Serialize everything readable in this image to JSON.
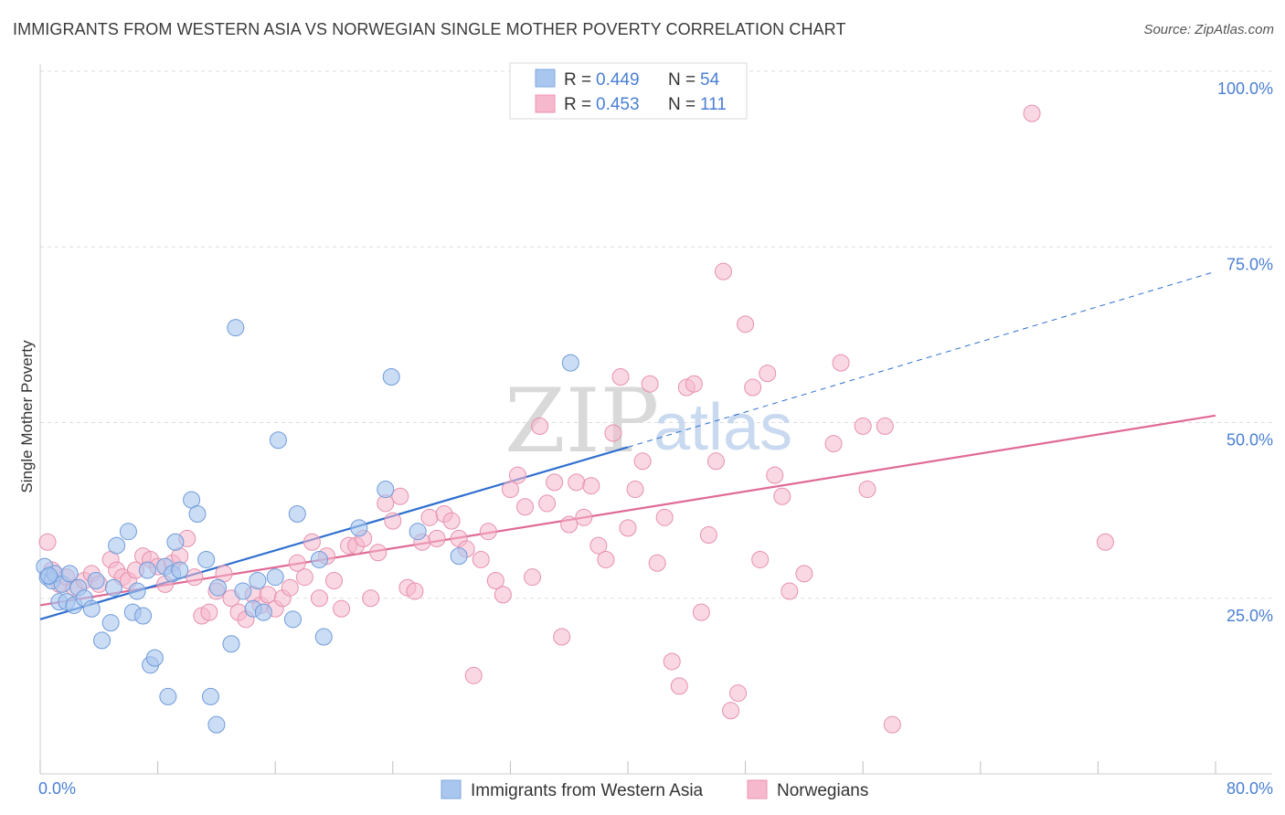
{
  "header": {
    "title": "IMMIGRANTS FROM WESTERN ASIA VS NORWEGIAN SINGLE MOTHER POVERTY CORRELATION CHART",
    "source": "Source: ZipAtlas.com"
  },
  "watermark": {
    "part1": "ZIP",
    "part2": "atlas"
  },
  "colors": {
    "blue": "#4a7fd4",
    "blue_fill": "#a9c6ee",
    "blue_line": "#2f6fcf",
    "pink": "#e0608e",
    "pink_fill": "#f6b8cc",
    "pink_line": "#e06a96",
    "grid": "#dddddd"
  },
  "legend_top": {
    "rows": [
      {
        "r_label": "R = ",
        "r_value": "0.449",
        "n_label": "N = ",
        "n_value": "54"
      },
      {
        "r_label": "R = ",
        "r_value": "0.453",
        "n_label": "N = ",
        "n_value": "111"
      }
    ]
  },
  "chart_data": {
    "type": "scatter",
    "title": "IMMIGRANTS FROM WESTERN ASIA VS NORWEGIAN SINGLE MOTHER POVERTY CORRELATION CHART",
    "xlabel": "",
    "ylabel": "Single Mother Poverty",
    "xlim": [
      0,
      80
    ],
    "ylim": [
      0,
      100
    ],
    "x_tick_labels": [
      "0.0%",
      "80.0%"
    ],
    "y_ticks": [
      25,
      50,
      75,
      100
    ],
    "y_tick_labels": [
      "25.0%",
      "50.0%",
      "75.0%",
      "100.0%"
    ],
    "grid": true,
    "series": [
      {
        "name": "Immigrants from Western Asia",
        "color": "blue",
        "r": 0.449,
        "n": 54,
        "trend": {
          "x0": 0,
          "y0": 22,
          "x1": 40,
          "y1": 46.5,
          "dashed_to_x": 80,
          "dashed_to_y": 71.5
        },
        "points": [
          [
            0.3,
            29.5
          ],
          [
            0.5,
            28
          ],
          [
            0.8,
            27.5
          ],
          [
            1.0,
            28.5
          ],
          [
            1.3,
            24.5
          ],
          [
            1.5,
            27
          ],
          [
            1.8,
            24.5
          ],
          [
            2.0,
            28.5
          ],
          [
            2.3,
            24
          ],
          [
            2.6,
            26.5
          ],
          [
            3.0,
            25
          ],
          [
            3.5,
            23.5
          ],
          [
            4.2,
            19
          ],
          [
            4.8,
            21.5
          ],
          [
            5.2,
            32.5
          ],
          [
            6.0,
            34.5
          ],
          [
            6.3,
            23
          ],
          [
            6.6,
            26
          ],
          [
            7.0,
            22.5
          ],
          [
            7.3,
            29
          ],
          [
            7.5,
            15.5
          ],
          [
            7.8,
            16.5
          ],
          [
            8.5,
            29.5
          ],
          [
            8.7,
            11
          ],
          [
            9.0,
            28.5
          ],
          [
            9.2,
            33
          ],
          [
            10.3,
            39
          ],
          [
            10.7,
            37
          ],
          [
            11.3,
            30.5
          ],
          [
            11.6,
            11
          ],
          [
            12.0,
            7
          ],
          [
            12.1,
            26.5
          ],
          [
            13.0,
            18.5
          ],
          [
            13.3,
            63.5
          ],
          [
            13.8,
            26
          ],
          [
            14.5,
            23.5
          ],
          [
            14.8,
            27.5
          ],
          [
            15.2,
            23
          ],
          [
            16.0,
            28
          ],
          [
            16.2,
            47.5
          ],
          [
            17.2,
            22
          ],
          [
            17.5,
            37
          ],
          [
            19.0,
            30.5
          ],
          [
            19.3,
            19.5
          ],
          [
            21.7,
            35
          ],
          [
            23.5,
            40.5
          ],
          [
            23.9,
            56.5
          ],
          [
            25.7,
            34.5
          ],
          [
            28.5,
            31
          ],
          [
            36.1,
            58.5
          ],
          [
            5.0,
            26.5
          ],
          [
            9.5,
            29
          ],
          [
            3.8,
            27.5
          ],
          [
            0.6,
            28.2
          ]
        ]
      },
      {
        "name": "Norwegians",
        "color": "pink",
        "r": 0.453,
        "n": 111,
        "trend": {
          "x0": 0,
          "y0": 24,
          "x1": 80,
          "y1": 51
        },
        "points": [
          [
            0.5,
            33
          ],
          [
            0.8,
            29
          ],
          [
            1.3,
            27
          ],
          [
            1.8,
            28
          ],
          [
            2.3,
            26.5
          ],
          [
            3.0,
            27.5
          ],
          [
            3.5,
            28.5
          ],
          [
            4.0,
            27
          ],
          [
            4.8,
            30.5
          ],
          [
            5.2,
            29
          ],
          [
            5.6,
            28
          ],
          [
            6.0,
            27.5
          ],
          [
            6.5,
            29
          ],
          [
            7.0,
            31
          ],
          [
            7.5,
            30.5
          ],
          [
            8.0,
            29.5
          ],
          [
            8.5,
            27
          ],
          [
            9.0,
            30
          ],
          [
            9.5,
            31
          ],
          [
            10.0,
            33.5
          ],
          [
            10.5,
            28
          ],
          [
            11.0,
            22.5
          ],
          [
            11.5,
            23
          ],
          [
            12.0,
            26
          ],
          [
            12.5,
            28.5
          ],
          [
            13.0,
            25
          ],
          [
            13.5,
            23
          ],
          [
            14.0,
            22
          ],
          [
            14.5,
            25.5
          ],
          [
            15.0,
            24
          ],
          [
            15.5,
            25.5
          ],
          [
            16.0,
            23.5
          ],
          [
            16.5,
            25
          ],
          [
            17.0,
            26.5
          ],
          [
            17.5,
            30
          ],
          [
            18.0,
            28
          ],
          [
            18.5,
            33
          ],
          [
            19.0,
            25
          ],
          [
            19.5,
            31
          ],
          [
            20.0,
            27.5
          ],
          [
            20.5,
            23.5
          ],
          [
            21.0,
            32.5
          ],
          [
            21.5,
            32.5
          ],
          [
            22.0,
            33.5
          ],
          [
            22.5,
            25
          ],
          [
            23.0,
            31.5
          ],
          [
            23.5,
            38.5
          ],
          [
            24.0,
            36
          ],
          [
            24.5,
            39.5
          ],
          [
            25.0,
            26.5
          ],
          [
            25.5,
            26
          ],
          [
            26.0,
            33
          ],
          [
            26.5,
            36.5
          ],
          [
            27.0,
            33.5
          ],
          [
            27.5,
            37
          ],
          [
            28.0,
            36
          ],
          [
            28.5,
            33.5
          ],
          [
            29.0,
            32
          ],
          [
            29.5,
            14
          ],
          [
            30.0,
            30.5
          ],
          [
            30.5,
            34.5
          ],
          [
            31.0,
            27.5
          ],
          [
            31.5,
            25.5
          ],
          [
            32.0,
            40.5
          ],
          [
            32.5,
            42.5
          ],
          [
            33.0,
            38
          ],
          [
            33.5,
            28
          ],
          [
            34.0,
            49.5
          ],
          [
            34.5,
            38.5
          ],
          [
            35.0,
            41.5
          ],
          [
            35.5,
            19.5
          ],
          [
            36.0,
            35.5
          ],
          [
            36.5,
            41.5
          ],
          [
            37.0,
            36.5
          ],
          [
            37.5,
            41
          ],
          [
            38.0,
            32.5
          ],
          [
            38.5,
            30.5
          ],
          [
            39.0,
            48.5
          ],
          [
            39.5,
            56.5
          ],
          [
            40.0,
            35
          ],
          [
            40.5,
            40.5
          ],
          [
            41.0,
            44.5
          ],
          [
            41.5,
            55.5
          ],
          [
            42.0,
            30
          ],
          [
            42.5,
            36.5
          ],
          [
            43.0,
            16
          ],
          [
            43.5,
            12.5
          ],
          [
            44.0,
            55
          ],
          [
            44.5,
            55.5
          ],
          [
            45.0,
            23
          ],
          [
            45.5,
            34
          ],
          [
            46.0,
            44.5
          ],
          [
            46.5,
            71.5
          ],
          [
            47.0,
            9
          ],
          [
            47.5,
            11.5
          ],
          [
            48.0,
            64
          ],
          [
            48.5,
            55
          ],
          [
            49.0,
            30.5
          ],
          [
            49.5,
            57
          ],
          [
            50.0,
            42.5
          ],
          [
            50.5,
            39.5
          ],
          [
            51.0,
            26
          ],
          [
            52.0,
            28.5
          ],
          [
            54.0,
            47
          ],
          [
            54.5,
            58.5
          ],
          [
            56.0,
            49.5
          ],
          [
            56.3,
            40.5
          ],
          [
            57.5,
            49.5
          ],
          [
            58.0,
            7
          ],
          [
            67.5,
            94
          ],
          [
            72.5,
            33
          ]
        ]
      }
    ]
  },
  "legend_bottom": {
    "items": [
      {
        "label": "Immigrants from Western Asia"
      },
      {
        "label": "Norwegians"
      }
    ]
  }
}
